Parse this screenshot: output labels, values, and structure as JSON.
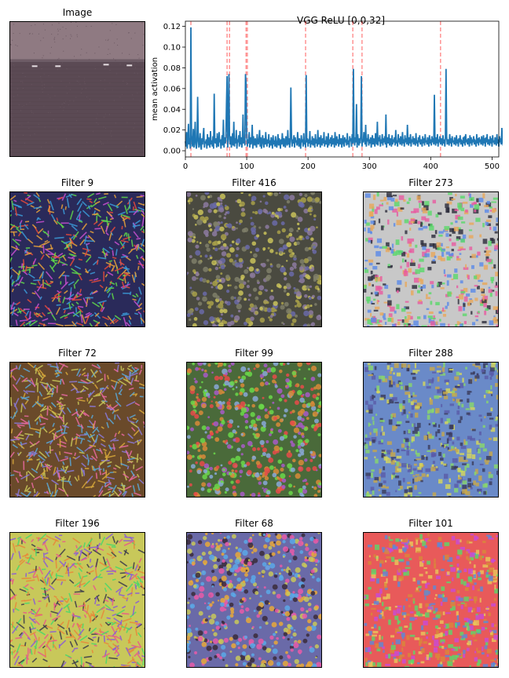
{
  "image_panel": {
    "title": "Image",
    "colors": {
      "sky": "#8f7a82",
      "sea": "#5b4a54",
      "horizon": "#6e5c66"
    }
  },
  "chart_data": {
    "type": "line",
    "title": "VGG ReLU [0,0,32]",
    "xlabel": "",
    "ylabel": "mean activation",
    "xlim": [
      0,
      511
    ],
    "ylim": [
      -0.006,
      0.125
    ],
    "xticks": [
      0,
      100,
      200,
      300,
      400,
      500
    ],
    "yticks": [
      0.0,
      0.02,
      0.04,
      0.06,
      0.08,
      0.1,
      0.12
    ],
    "ytick_labels": [
      "0.00",
      "0.02",
      "0.04",
      "0.06",
      "0.08",
      "0.10",
      "0.12"
    ],
    "grid": false,
    "line_color": "#1f77b4",
    "marker_color": "#ff0000",
    "marked_filters": [
      9,
      68,
      72,
      99,
      101,
      196,
      273,
      288,
      416
    ],
    "series": [
      {
        "values": [
          0.009,
          0.004,
          0.018,
          0.002,
          0.01,
          0.026,
          0.006,
          0.012,
          0.002,
          0.119,
          0.015,
          0.004,
          0.007,
          0.021,
          0.003,
          0.011,
          0.028,
          0.006,
          0.002,
          0.009,
          0.052,
          0.013,
          0.003,
          0.008,
          0.017,
          0.004,
          0.001,
          0.012,
          0.006,
          0.015,
          0.022,
          0.003,
          0.009,
          0.007,
          0.011,
          0.002,
          0.016,
          0.005,
          0.013,
          0.008,
          0.003,
          0.019,
          0.006,
          0.01,
          0.004,
          0.014,
          0.002,
          0.055,
          0.009,
          0.007,
          0.012,
          0.003,
          0.017,
          0.006,
          0.004,
          0.018,
          0.008,
          0.011,
          0.002,
          0.009,
          0.015,
          0.005,
          0.03,
          0.003,
          0.013,
          0.007,
          0.01,
          0.045,
          0.072,
          0.003,
          0.022,
          0.074,
          0.011,
          0.006,
          0.014,
          0.003,
          0.009,
          0.017,
          0.005,
          0.028,
          0.004,
          0.012,
          0.007,
          0.02,
          0.002,
          0.011,
          0.008,
          0.015,
          0.004,
          0.019,
          0.006,
          0.013,
          0.003,
          0.009,
          0.035,
          0.007,
          0.012,
          0.005,
          0.074,
          0.064,
          0.016,
          0.004,
          0.011,
          0.007,
          0.018,
          0.003,
          0.013,
          0.006,
          0.01,
          0.025,
          0.002,
          0.014,
          0.008,
          0.005,
          0.012,
          0.007,
          0.003,
          0.016,
          0.009,
          0.006,
          0.011,
          0.02,
          0.004,
          0.013,
          0.002,
          0.007,
          0.015,
          0.009,
          0.003,
          0.012,
          0.006,
          0.018,
          0.009,
          0.004,
          0.011,
          0.007,
          0.016,
          0.003,
          0.01,
          0.005,
          0.013,
          0.008,
          0.002,
          0.015,
          0.006,
          0.01,
          0.004,
          0.014,
          0.007,
          0.003,
          0.009,
          0.016,
          0.005,
          0.012,
          0.008,
          0.002,
          0.011,
          0.006,
          0.017,
          0.009,
          0.004,
          0.012,
          0.007,
          0.003,
          0.014,
          0.01,
          0.005,
          0.02,
          0.006,
          0.012,
          0.003,
          0.009,
          0.061,
          0.016,
          0.004,
          0.011,
          0.007,
          0.015,
          0.003,
          0.013,
          0.008,
          0.01,
          0.005,
          0.018,
          0.009,
          0.004,
          0.012,
          0.006,
          0.002,
          0.015,
          0.008,
          0.011,
          0.004,
          0.017,
          0.006,
          0.01,
          0.003,
          0.073,
          0.008,
          0.012,
          0.004,
          0.011,
          0.007,
          0.019,
          0.003,
          0.01,
          0.006,
          0.014,
          0.005,
          0.012,
          0.008,
          0.003,
          0.016,
          0.007,
          0.011,
          0.004,
          0.02,
          0.006,
          0.009,
          0.013,
          0.003,
          0.015,
          0.008,
          0.005,
          0.012,
          0.007,
          0.018,
          0.004,
          0.01,
          0.006,
          0.014,
          0.009,
          0.003,
          0.017,
          0.005,
          0.011,
          0.007,
          0.013,
          0.004,
          0.015,
          0.006,
          0.009,
          0.012,
          0.003,
          0.018,
          0.008,
          0.005,
          0.014,
          0.007,
          0.011,
          0.004,
          0.016,
          0.006,
          0.01,
          0.012,
          0.003,
          0.009,
          0.015,
          0.007,
          0.004,
          0.013,
          0.008,
          0.011,
          0.005,
          0.017,
          0.006,
          0.01,
          0.003,
          0.014,
          0.009,
          0.012,
          0.004,
          0.016,
          0.007,
          0.079,
          0.011,
          0.005,
          0.013,
          0.008,
          0.045,
          0.003,
          0.016,
          0.009,
          0.005,
          0.012,
          0.007,
          0.015,
          0.072,
          0.004,
          0.011,
          0.008,
          0.018,
          0.014,
          0.006,
          0.025,
          0.004,
          0.012,
          0.009,
          0.016,
          0.005,
          0.011,
          0.007,
          0.013,
          0.003,
          0.009,
          0.015,
          0.006,
          0.012,
          0.008,
          0.004,
          0.017,
          0.011,
          0.006,
          0.028,
          0.005,
          0.013,
          0.009,
          0.015,
          0.004,
          0.011,
          0.007,
          0.016,
          0.005,
          0.012,
          0.008,
          0.014,
          0.006,
          0.035,
          0.003,
          0.013,
          0.01,
          0.007,
          0.016,
          0.005,
          0.012,
          0.009,
          0.004,
          0.015,
          0.006,
          0.011,
          0.008,
          0.013,
          0.005,
          0.02,
          0.007,
          0.01,
          0.004,
          0.016,
          0.008,
          0.012,
          0.006,
          0.014,
          0.009,
          0.005,
          0.018,
          0.007,
          0.011,
          0.004,
          0.015,
          0.008,
          0.012,
          0.006,
          0.025,
          0.009,
          0.005,
          0.013,
          0.007,
          0.016,
          0.004,
          0.011,
          0.008,
          0.014,
          0.006,
          0.012,
          0.009,
          0.005,
          0.017,
          0.007,
          0.01,
          0.004,
          0.013,
          0.008,
          0.015,
          0.006,
          0.011,
          0.009,
          0.004,
          0.014,
          0.007,
          0.012,
          0.005,
          0.016,
          0.008,
          0.01,
          0.006,
          0.013,
          0.009,
          0.004,
          0.015,
          0.007,
          0.011,
          0.005,
          0.014,
          0.008,
          0.012,
          0.006,
          0.054,
          0.009,
          0.005,
          0.013,
          0.007,
          0.016,
          0.004,
          0.011,
          0.008,
          0.014,
          0.006,
          0.012,
          0.009,
          0.005,
          0.015,
          0.007,
          0.011,
          0.004,
          0.013,
          0.079,
          0.014,
          0.006,
          0.011,
          0.009,
          0.005,
          0.016,
          0.007,
          0.012,
          0.004,
          0.014,
          0.008,
          0.01,
          0.006,
          0.013,
          0.009,
          0.005,
          0.015,
          0.007,
          0.011,
          0.004,
          0.012,
          0.008,
          0.015,
          0.006,
          0.01,
          0.009,
          0.004,
          0.013,
          0.007,
          0.014,
          0.005,
          0.016,
          0.008,
          0.011,
          0.006,
          0.012,
          0.009,
          0.004,
          0.015,
          0.007,
          0.013,
          0.005,
          0.011,
          0.008,
          0.014,
          0.006,
          0.01,
          0.009,
          0.004,
          0.016,
          0.007,
          0.012,
          0.005,
          0.013,
          0.008,
          0.011,
          0.006,
          0.014,
          0.009,
          0.005,
          0.015,
          0.007,
          0.012,
          0.004,
          0.013,
          0.008,
          0.016,
          0.006,
          0.011,
          0.009,
          0.005,
          0.014,
          0.007,
          0.012,
          0.004,
          0.015,
          0.008,
          0.01,
          0.006,
          0.013,
          0.009,
          0.005,
          0.016,
          0.007,
          0.011,
          0.004,
          0.014,
          0.008,
          0.012,
          0.006,
          0.022,
          0.009,
          0.005,
          0.015,
          0.007,
          0.013,
          0.004,
          0.011,
          0.008,
          0.016,
          0.006,
          0.012,
          0.009,
          0.005,
          0.014,
          0.007,
          0.02,
          0.004,
          0.013,
          0.008,
          0.011,
          0.006,
          0.015,
          0.003
        ]
      }
    ]
  },
  "filters": [
    {
      "title": "Filter 9",
      "palette": [
        "#e8a23a",
        "#3b9bd8",
        "#c84fd0",
        "#5fd84a",
        "#e84a3a",
        "#2a2a5a"
      ]
    },
    {
      "title": "Filter 416",
      "palette": [
        "#7f7f6a",
        "#c9c25a",
        "#6a6aa8",
        "#a8a04a",
        "#8c7aa0",
        "#4a4a40"
      ]
    },
    {
      "title": "Filter 273",
      "palette": [
        "#e85aa0",
        "#5ad86a",
        "#5a8ae8",
        "#e8a85a",
        "#2a2a3a",
        "#c8c8c8"
      ]
    },
    {
      "title": "Filter 72",
      "palette": [
        "#d8a83a",
        "#8a7ad8",
        "#e86aa0",
        "#5aa8d8",
        "#c8c85a",
        "#6a4a2a"
      ]
    },
    {
      "title": "Filter 99",
      "palette": [
        "#6ad84a",
        "#e84a4a",
        "#d88a3a",
        "#8aa8d8",
        "#a85ac8",
        "#4a6a3a"
      ]
    },
    {
      "title": "Filter 288",
      "palette": [
        "#d8d85a",
        "#5a5aa8",
        "#8ad86a",
        "#3a3a5a",
        "#c8a84a",
        "#6a8ac8"
      ]
    },
    {
      "title": "Filter 196",
      "palette": [
        "#e8883a",
        "#4ad86a",
        "#8a5ad8",
        "#e85a8a",
        "#3a3a4a",
        "#c8c85a"
      ]
    },
    {
      "title": "Filter 68",
      "palette": [
        "#e8a83a",
        "#3a2a3a",
        "#e85aa8",
        "#5aa8e8",
        "#c8c85a",
        "#6a6aa8"
      ]
    },
    {
      "title": "Filter 101",
      "palette": [
        "#d8883a",
        "#5ad86a",
        "#c84ad8",
        "#e8c85a",
        "#5a8ad8",
        "#e85a5a"
      ]
    }
  ]
}
